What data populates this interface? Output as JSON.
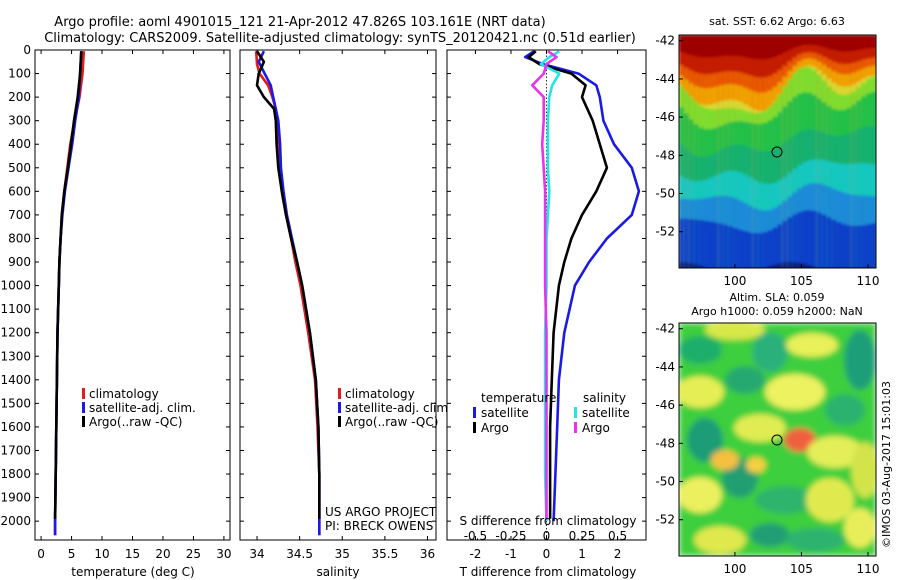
{
  "header": {
    "title_line1": "Argo profile: aoml 4901015_121 21-Apr-2012 47.826S 103.161E (NRT data)",
    "title_line2": "Climatology: CARS2009. Satellite-adjusted climatology: synTS_20120421.nc (0.51d earlier)"
  },
  "credits": {
    "project": "US ARGO PROJECT",
    "pi": "PI: BRECK OWENS",
    "imos_stamp": "©IMOS 03-Aug-2017 15:01:03"
  },
  "colors": {
    "climatology": "#e11a1a",
    "satellite": "#1a1ae6",
    "argo": "#000000",
    "sal_satellite": "#22e5e5",
    "sal_argo": "#e833e8"
  },
  "chart_data": [
    {
      "id": "temperature",
      "type": "line",
      "xlabel": "temperature (deg C)",
      "ylabel": "",
      "xlim": [
        -1,
        31
      ],
      "ylim": [
        2080,
        0
      ],
      "xticks": [
        0,
        5,
        10,
        15,
        20,
        25,
        30
      ],
      "yticks": [
        0,
        100,
        200,
        300,
        400,
        500,
        600,
        700,
        800,
        900,
        1000,
        1100,
        1200,
        1300,
        1400,
        1500,
        1600,
        1700,
        1800,
        1900,
        2000
      ],
      "legend": {
        "placement": "center-left",
        "entries": [
          {
            "label": "climatology",
            "color_key": "climatology"
          },
          {
            "label": "satellite-adj. clim.",
            "color_key": "satellite"
          },
          {
            "label": "Argo(..raw -QC)",
            "color_key": "argo"
          }
        ]
      },
      "series": [
        {
          "key": "climatology",
          "color_key": "climatology",
          "depth": [
            5,
            100,
            200,
            300,
            400,
            500,
            600,
            700,
            800,
            900,
            1000,
            1200,
            1400,
            1600,
            1800,
            2000,
            2060
          ],
          "values": [
            7.0,
            6.8,
            6.3,
            5.5,
            4.8,
            4.3,
            3.8,
            3.4,
            3.2,
            3.0,
            2.9,
            2.7,
            2.6,
            2.5,
            2.4,
            2.3,
            2.3
          ]
        },
        {
          "key": "satellite",
          "color_key": "satellite",
          "depth": [
            5,
            100,
            200,
            300,
            400,
            500,
            600,
            700,
            800,
            900,
            1000,
            1200,
            1400,
            1600,
            1800,
            2000,
            2060
          ],
          "values": [
            6.6,
            6.4,
            6.2,
            5.6,
            5.1,
            4.5,
            3.9,
            3.5,
            3.2,
            3.0,
            2.9,
            2.7,
            2.6,
            2.5,
            2.4,
            2.3,
            2.3
          ]
        },
        {
          "key": "argo",
          "color_key": "argo",
          "depth": [
            5,
            100,
            200,
            300,
            400,
            500,
            600,
            700,
            800,
            900,
            1000,
            1200,
            1400,
            1600,
            1800,
            1990
          ],
          "values": [
            6.6,
            6.4,
            6.0,
            5.4,
            4.9,
            4.4,
            3.8,
            3.4,
            3.2,
            3.0,
            2.9,
            2.7,
            2.6,
            2.5,
            2.4,
            2.3
          ]
        }
      ]
    },
    {
      "id": "salinity",
      "type": "line",
      "xlabel": "salinity",
      "ylabel": "",
      "xlim": [
        33.8,
        36.1
      ],
      "ylim": [
        2080,
        0
      ],
      "xticks": [
        34,
        34.5,
        35,
        35.5,
        36
      ],
      "legend": {
        "placement": "center-right",
        "entries": [
          {
            "label": "climatology",
            "color_key": "climatology"
          },
          {
            "label": "satellite-adj. clim.",
            "color_key": "satellite"
          },
          {
            "label": "Argo(..raw -QC)",
            "color_key": "argo"
          }
        ]
      },
      "series": [
        {
          "key": "climatology",
          "color_key": "climatology",
          "depth": [
            5,
            60,
            100,
            150,
            200,
            250,
            300,
            400,
            500,
            600,
            700,
            800,
            900,
            1000,
            1200,
            1400,
            1600,
            1800,
            2000,
            2060
          ],
          "values": [
            33.99,
            34.0,
            34.03,
            34.13,
            34.18,
            34.22,
            34.24,
            34.25,
            34.27,
            34.29,
            34.34,
            34.4,
            34.45,
            34.51,
            34.6,
            34.68,
            34.71,
            34.73,
            34.73,
            34.73
          ]
        },
        {
          "key": "satellite",
          "color_key": "satellite",
          "depth": [
            5,
            50,
            100,
            150,
            200,
            250,
            300,
            400,
            500,
            600,
            700,
            800,
            900,
            1000,
            1200,
            1400,
            1600,
            1800,
            2000,
            2060
          ],
          "values": [
            34.08,
            34.02,
            34.09,
            34.16,
            34.19,
            34.22,
            34.25,
            34.27,
            34.28,
            34.31,
            34.35,
            34.41,
            34.47,
            34.53,
            34.62,
            34.69,
            34.72,
            34.73,
            34.73,
            34.73
          ]
        },
        {
          "key": "argo",
          "color_key": "argo",
          "depth": [
            5,
            50,
            100,
            150,
            200,
            250,
            300,
            400,
            500,
            600,
            700,
            800,
            900,
            1000,
            1200,
            1400,
            1600,
            1800,
            1990
          ],
          "values": [
            34.0,
            34.08,
            34.02,
            34.0,
            34.08,
            34.2,
            34.22,
            34.23,
            34.25,
            34.29,
            34.34,
            34.4,
            34.47,
            34.53,
            34.62,
            34.69,
            34.72,
            34.73,
            34.73
          ]
        }
      ]
    },
    {
      "id": "difference",
      "type": "line",
      "xlabel": "T difference from climatology",
      "xlabel_top": "S difference from climatology",
      "ylabel": "",
      "xlim": [
        -2.8,
        2.8
      ],
      "ylim": [
        2080,
        0
      ],
      "xticks_T": [
        -2,
        -1,
        0,
        1,
        2
      ],
      "xticks_S": [
        "-0.5",
        "-0.25",
        "0",
        "0.25",
        "0.5"
      ],
      "legend": {
        "placement": "center",
        "temperature_header": "temperature",
        "salinity_header": "salinity",
        "entries": [
          {
            "label": "satellite",
            "color_key": "satellite",
            "group": "temperature"
          },
          {
            "label": "Argo",
            "color_key": "argo",
            "group": "temperature"
          },
          {
            "label": "satellite",
            "color_key": "sal_satellite",
            "group": "salinity"
          },
          {
            "label": "Argo",
            "color_key": "sal_argo",
            "group": "salinity"
          }
        ]
      },
      "series": [
        {
          "key": "t_satellite",
          "color_key": "satellite",
          "depth": [
            5,
            30,
            60,
            100,
            150,
            200,
            300,
            400,
            500,
            600,
            700,
            800,
            900,
            1000,
            1200,
            1400,
            1600,
            1800,
            2000
          ],
          "values": [
            -0.35,
            -0.6,
            -0.1,
            0.9,
            1.4,
            1.5,
            1.6,
            1.9,
            2.4,
            2.6,
            2.4,
            1.7,
            1.2,
            0.8,
            0.5,
            0.35,
            0.3,
            0.25,
            0.2
          ]
        },
        {
          "key": "t_argo",
          "color_key": "argo",
          "depth": [
            5,
            30,
            60,
            100,
            150,
            200,
            300,
            400,
            500,
            600,
            700,
            800,
            900,
            1000,
            1200,
            1400,
            1600,
            1800,
            1990
          ],
          "values": [
            -0.3,
            -0.5,
            -0.2,
            0.7,
            1.1,
            1.0,
            1.3,
            1.5,
            1.7,
            1.4,
            1.0,
            0.7,
            0.5,
            0.35,
            0.2,
            0.15,
            0.1,
            0.1,
            0.1
          ]
        },
        {
          "key": "s_satellite",
          "color_key": "sal_satellite",
          "depth": [
            5,
            30,
            60,
            100,
            150,
            200,
            300,
            400,
            500,
            600,
            700,
            800,
            900,
            1000,
            1200,
            1400,
            1600,
            1800,
            2000
          ],
          "values": [
            0.09,
            0.02,
            -0.04,
            0.09,
            0.04,
            0.02,
            0.01,
            0.01,
            0.01,
            0.02,
            0.01,
            0.0,
            0.0,
            0.0,
            -0.01,
            -0.01,
            -0.01,
            -0.01,
            0.0
          ]
        },
        {
          "key": "s_argo",
          "color_key": "sal_argo",
          "depth": [
            5,
            30,
            60,
            100,
            150,
            200,
            300,
            400,
            500,
            600,
            700,
            800,
            900,
            1000,
            1200,
            1400,
            1600,
            1800,
            1990
          ],
          "values": [
            0.01,
            0.07,
            0.0,
            -0.02,
            -0.1,
            -0.02,
            -0.02,
            -0.03,
            -0.02,
            -0.01,
            -0.01,
            -0.01,
            -0.01,
            -0.01,
            0.0,
            0.0,
            0.0,
            0.0,
            0.0
          ]
        }
      ]
    },
    {
      "id": "sst_map",
      "type": "heatmap",
      "title": "sat. SST: 6.62 Argo: 6.63",
      "xticks": [
        100,
        105,
        110
      ],
      "yticks": [
        -42,
        -44,
        -46,
        -48,
        -50,
        -52
      ],
      "xlim": [
        95.8,
        110.6
      ],
      "ylim": [
        -53.9,
        -41.7
      ],
      "profile_marker": {
        "lon": 103.161,
        "lat": -47.826
      }
    },
    {
      "id": "sla_map",
      "type": "heatmap",
      "title_line1": "Altim. SLA: 0.059",
      "title_line2": "Argo h1000: 0.059 h2000: NaN",
      "xticks": [
        100,
        105,
        110
      ],
      "yticks": [
        -42,
        -44,
        -46,
        -48,
        -50,
        -52
      ],
      "xlim": [
        95.8,
        110.6
      ],
      "ylim": [
        -53.9,
        -41.7
      ],
      "profile_marker": {
        "lon": 103.161,
        "lat": -47.826
      }
    }
  ]
}
